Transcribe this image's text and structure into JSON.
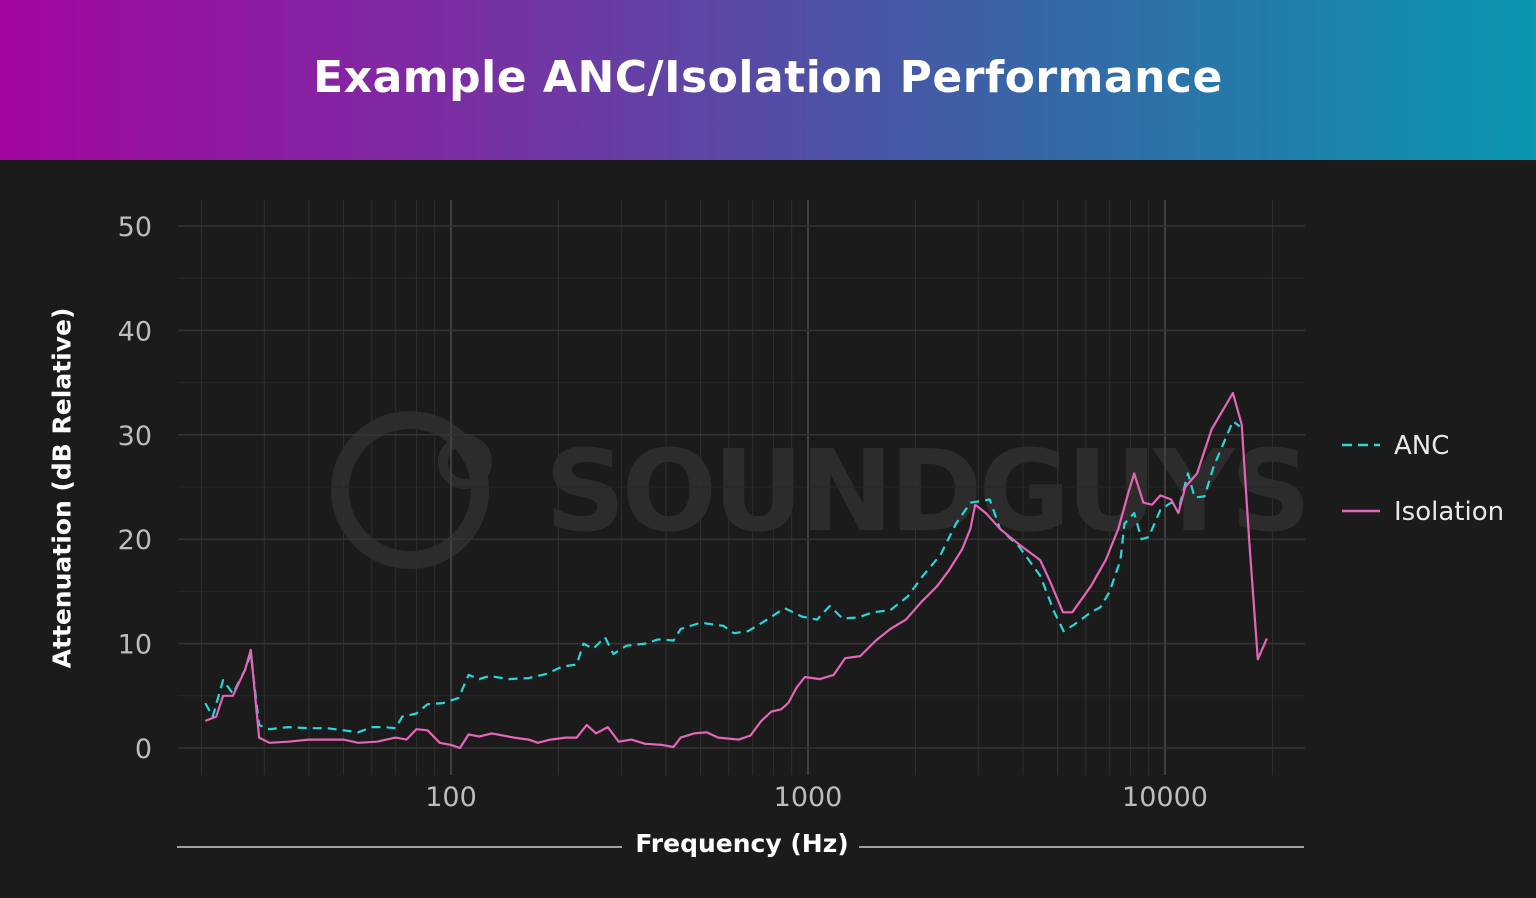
{
  "chart_data": {
    "type": "line",
    "title": "Example ANC/Isolation Performance",
    "xlabel": "Frequency (Hz)",
    "ylabel": "Attenuation (dB Relative)",
    "xscale": "log",
    "xlim": [
      16,
      26000
    ],
    "ylim": [
      0,
      50
    ],
    "xticks": [
      100,
      1000,
      10000
    ],
    "xtick_labels": [
      "100",
      "1000",
      "10000"
    ],
    "yticks": [
      0,
      10,
      20,
      30,
      40,
      50
    ],
    "ytick_labels": [
      "0",
      "10",
      "20",
      "30",
      "40",
      "50"
    ],
    "grid": true,
    "legend": "right",
    "watermark": "SOUNDGUYS",
    "colors": {
      "background": "#1b1b1b",
      "ANC": "#2ad6d8",
      "Isolation": "#e565b8"
    },
    "series": [
      {
        "name": "ANC",
        "style": "dashed",
        "points": [
          [
            20.5,
            4.3
          ],
          [
            21.5,
            3.0
          ],
          [
            23,
            6.5
          ],
          [
            24.5,
            5.2
          ],
          [
            26.5,
            7.5
          ],
          [
            27.5,
            9.0
          ],
          [
            29,
            2.2
          ],
          [
            31,
            1.8
          ],
          [
            35,
            2.0
          ],
          [
            40,
            1.9
          ],
          [
            45,
            1.9
          ],
          [
            50,
            1.7
          ],
          [
            55,
            1.5
          ],
          [
            60,
            2.0
          ],
          [
            65,
            2.0
          ],
          [
            70,
            1.9
          ],
          [
            73,
            3.0
          ],
          [
            80,
            3.3
          ],
          [
            86,
            4.2
          ],
          [
            95,
            4.3
          ],
          [
            105,
            4.8
          ],
          [
            112,
            7.0
          ],
          [
            120,
            6.6
          ],
          [
            128,
            6.9
          ],
          [
            145,
            6.6
          ],
          [
            165,
            6.7
          ],
          [
            185,
            7.1
          ],
          [
            205,
            7.8
          ],
          [
            225,
            8.0
          ],
          [
            235,
            10.0
          ],
          [
            250,
            9.5
          ],
          [
            270,
            10.6
          ],
          [
            285,
            9.0
          ],
          [
            310,
            9.8
          ],
          [
            350,
            10.0
          ],
          [
            380,
            10.4
          ],
          [
            420,
            10.3
          ],
          [
            440,
            11.4
          ],
          [
            500,
            12.0
          ],
          [
            580,
            11.7
          ],
          [
            620,
            11.0
          ],
          [
            680,
            11.2
          ],
          [
            760,
            12.2
          ],
          [
            860,
            13.4
          ],
          [
            960,
            12.6
          ],
          [
            1060,
            12.3
          ],
          [
            1150,
            13.6
          ],
          [
            1250,
            12.4
          ],
          [
            1380,
            12.5
          ],
          [
            1520,
            13.0
          ],
          [
            1700,
            13.2
          ],
          [
            1900,
            14.5
          ],
          [
            2100,
            16.5
          ],
          [
            2350,
            18.5
          ],
          [
            2600,
            21.5
          ],
          [
            2850,
            23.5
          ],
          [
            3230,
            23.8
          ],
          [
            3450,
            21.0
          ],
          [
            3900,
            19.3
          ],
          [
            4470,
            16.5
          ],
          [
            4900,
            13.0
          ],
          [
            5200,
            11.2
          ],
          [
            5560,
            11.8
          ],
          [
            6200,
            13.0
          ],
          [
            6600,
            13.5
          ],
          [
            7000,
            15.0
          ],
          [
            7500,
            18.0
          ],
          [
            7700,
            21.5
          ],
          [
            8200,
            22.5
          ],
          [
            8600,
            20.0
          ],
          [
            9000,
            20.2
          ],
          [
            9700,
            22.8
          ],
          [
            10400,
            23.5
          ],
          [
            11000,
            23.3
          ],
          [
            11600,
            26.3
          ],
          [
            12100,
            24.0
          ],
          [
            12900,
            24.1
          ],
          [
            13700,
            27.0
          ],
          [
            15500,
            31.3
          ],
          [
            16200,
            30.8
          ]
        ]
      },
      {
        "name": "Isolation",
        "style": "solid",
        "points": [
          [
            20.5,
            2.6
          ],
          [
            22,
            3.0
          ],
          [
            23,
            5.0
          ],
          [
            24.5,
            5.0
          ],
          [
            26.5,
            7.5
          ],
          [
            27.5,
            9.4
          ],
          [
            29,
            1.0
          ],
          [
            31,
            0.5
          ],
          [
            35,
            0.6
          ],
          [
            40,
            0.8
          ],
          [
            45,
            0.8
          ],
          [
            50,
            0.8
          ],
          [
            55,
            0.5
          ],
          [
            62,
            0.6
          ],
          [
            70,
            1.0
          ],
          [
            75,
            0.8
          ],
          [
            80,
            1.8
          ],
          [
            86,
            1.7
          ],
          [
            93,
            0.5
          ],
          [
            100,
            0.3
          ],
          [
            106,
            0.0
          ],
          [
            112,
            1.3
          ],
          [
            120,
            1.1
          ],
          [
            130,
            1.4
          ],
          [
            150,
            1.0
          ],
          [
            165,
            0.8
          ],
          [
            175,
            0.5
          ],
          [
            190,
            0.8
          ],
          [
            210,
            1.0
          ],
          [
            225,
            1.0
          ],
          [
            240,
            2.2
          ],
          [
            255,
            1.4
          ],
          [
            275,
            2.0
          ],
          [
            295,
            0.6
          ],
          [
            320,
            0.8
          ],
          [
            350,
            0.4
          ],
          [
            390,
            0.3
          ],
          [
            420,
            0.1
          ],
          [
            440,
            1.0
          ],
          [
            480,
            1.4
          ],
          [
            520,
            1.5
          ],
          [
            560,
            1.0
          ],
          [
            640,
            0.8
          ],
          [
            690,
            1.2
          ],
          [
            740,
            2.6
          ],
          [
            790,
            3.5
          ],
          [
            840,
            3.7
          ],
          [
            880,
            4.3
          ],
          [
            930,
            5.8
          ],
          [
            980,
            6.8
          ],
          [
            1080,
            6.6
          ],
          [
            1180,
            7.0
          ],
          [
            1270,
            8.6
          ],
          [
            1400,
            8.8
          ],
          [
            1550,
            10.3
          ],
          [
            1700,
            11.4
          ],
          [
            1880,
            12.3
          ],
          [
            2080,
            14.0
          ],
          [
            2300,
            15.5
          ],
          [
            2480,
            17.0
          ],
          [
            2700,
            19.0
          ],
          [
            2850,
            21.0
          ],
          [
            2940,
            23.3
          ],
          [
            3150,
            22.5
          ],
          [
            3450,
            21.0
          ],
          [
            3900,
            19.5
          ],
          [
            4470,
            18.0
          ],
          [
            4760,
            16.0
          ],
          [
            5180,
            13.0
          ],
          [
            5500,
            13.0
          ],
          [
            6200,
            15.5
          ],
          [
            6820,
            18.0
          ],
          [
            7400,
            21.0
          ],
          [
            7900,
            24.5
          ],
          [
            8200,
            26.3
          ],
          [
            8700,
            23.5
          ],
          [
            9200,
            23.3
          ],
          [
            9700,
            24.2
          ],
          [
            10400,
            23.8
          ],
          [
            10900,
            22.5
          ],
          [
            11400,
            25.0
          ],
          [
            12300,
            26.3
          ],
          [
            13500,
            30.5
          ],
          [
            15500,
            34.0
          ],
          [
            16400,
            31.0
          ],
          [
            17200,
            20.0
          ],
          [
            18200,
            8.5
          ],
          [
            19300,
            10.5
          ]
        ]
      }
    ]
  }
}
